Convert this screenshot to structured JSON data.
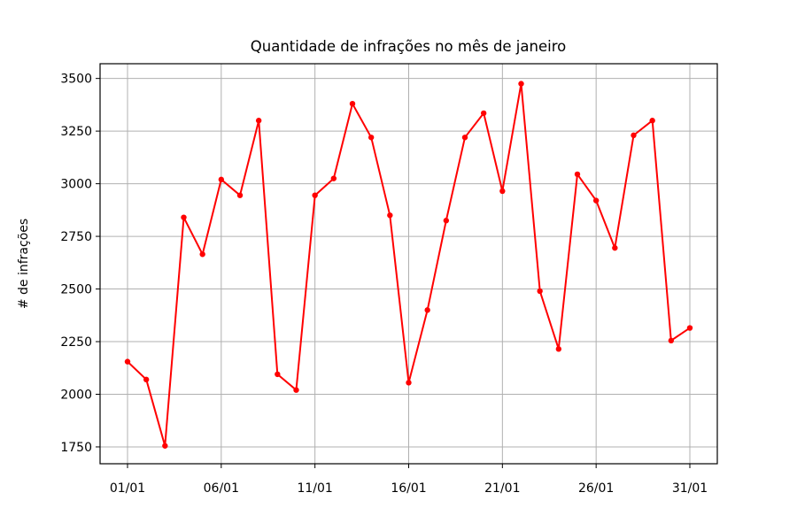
{
  "chart_data": {
    "type": "line",
    "title": "Quantidade de infrações no mês de janeiro",
    "xlabel": "",
    "ylabel": "# de infrações",
    "x": [
      "01/01",
      "02/01",
      "03/01",
      "04/01",
      "05/01",
      "06/01",
      "07/01",
      "08/01",
      "09/01",
      "10/01",
      "11/01",
      "12/01",
      "13/01",
      "14/01",
      "15/01",
      "16/01",
      "17/01",
      "18/01",
      "19/01",
      "20/01",
      "21/01",
      "22/01",
      "23/01",
      "24/01",
      "25/01",
      "26/01",
      "27/01",
      "28/01",
      "29/01",
      "30/01",
      "31/01"
    ],
    "x_tick_labels": [
      "01/01",
      "06/01",
      "11/01",
      "16/01",
      "21/01",
      "26/01",
      "31/01"
    ],
    "y_ticks": [
      1750,
      2000,
      2250,
      2500,
      2750,
      3000,
      3250,
      3500
    ],
    "ylim": [
      1670,
      3570
    ],
    "grid": true,
    "series": [
      {
        "color": "#ff0000",
        "marker": "dot",
        "values": [
          2155,
          2070,
          1755,
          2840,
          2665,
          3020,
          2945,
          3300,
          2095,
          2020,
          2945,
          3025,
          3380,
          3220,
          2850,
          2055,
          2400,
          2825,
          3220,
          3335,
          2965,
          3475,
          2490,
          2215,
          3045,
          2920,
          2695,
          3230,
          3300,
          2255,
          2315
        ]
      }
    ]
  }
}
